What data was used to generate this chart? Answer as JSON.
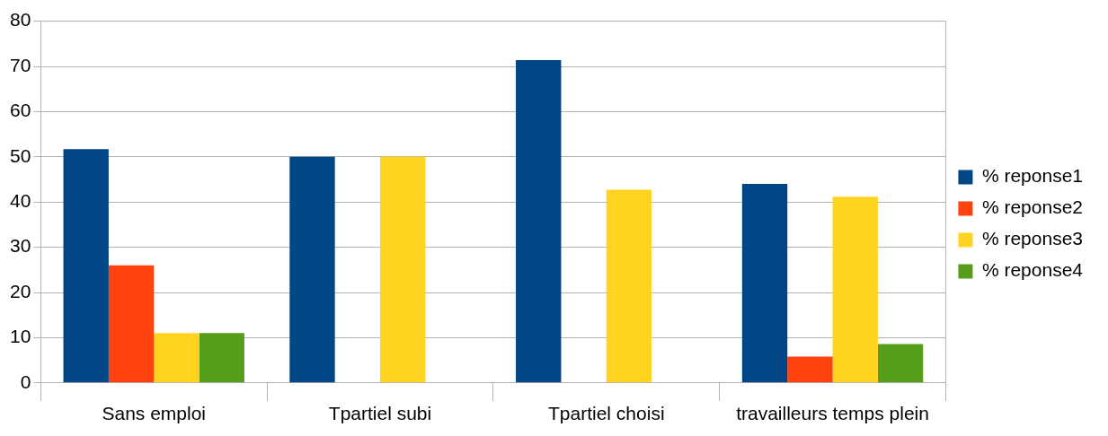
{
  "chart_data": {
    "type": "bar",
    "categories": [
      "Sans emploi",
      "Tpartiel subi",
      "Tpartiel choisi",
      "travailleurs temps plein"
    ],
    "series": [
      {
        "name": "% reponse1",
        "color": "#004586",
        "values": [
          51.7,
          50,
          71.4,
          44
        ]
      },
      {
        "name": "% reponse2",
        "color": "#ff420e",
        "values": [
          26,
          0,
          0,
          5.8
        ]
      },
      {
        "name": "% reponse3",
        "color": "#ffd320",
        "values": [
          11,
          50,
          42.7,
          41.2
        ]
      },
      {
        "name": "% reponse4",
        "color": "#579d1c",
        "values": [
          11,
          0,
          0,
          8.6
        ]
      }
    ],
    "ylim": [
      0,
      80
    ],
    "yticks": [
      0,
      10,
      20,
      30,
      40,
      50,
      60,
      70,
      80
    ],
    "grid": "y",
    "legend": "right"
  }
}
